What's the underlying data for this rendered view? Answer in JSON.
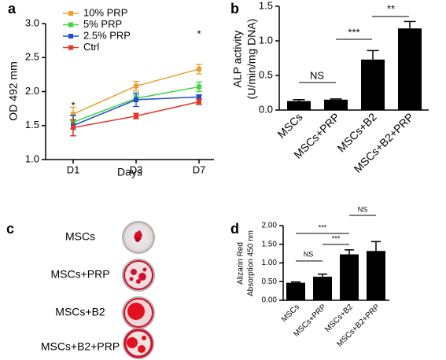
{
  "chart_data": [
    {
      "type": "line",
      "panel_label": "a",
      "y_label": "OD 492 mm",
      "x_label": "Days",
      "categories": [
        "D1",
        "D3",
        "D7"
      ],
      "series": [
        {
          "name": "10% PRP",
          "color": "#E8A02E",
          "values": [
            1.67,
            2.08,
            2.33
          ],
          "errors": [
            0.1,
            0.07,
            0.07
          ]
        },
        {
          "name": "5% PRP",
          "color": "#3BD63B",
          "values": [
            1.55,
            1.9,
            2.07
          ],
          "errors": [
            0.1,
            0.05,
            0.07
          ]
        },
        {
          "name": "2.5% PRP",
          "color": "#1E4FC8",
          "values": [
            1.5,
            1.88,
            1.92
          ],
          "errors": [
            0.15,
            0.1,
            0.03
          ]
        },
        {
          "name": "Ctrl",
          "color": "#E0382A",
          "values": [
            1.47,
            1.64,
            1.85
          ],
          "errors": [
            0.12,
            0.04,
            0.04
          ]
        }
      ],
      "ylim": [
        1.0,
        3.0
      ],
      "yticks": [
        {
          "value": 1.0,
          "label": "1.0"
        },
        1.5,
        {
          "value": 2.0,
          "label": "2.0"
        },
        2.5,
        {
          "value": 3.0,
          "label": "3.0"
        }
      ],
      "annotations": [
        "*",
        "*"
      ],
      "legend": "upper left"
    },
    {
      "type": "bar",
      "panel_label": "b",
      "y_label": [
        "ALP activity",
        "(U/min/mg DNA)"
      ],
      "categories": [
        "MSCs",
        "MSCs+PRP",
        "MSCs+B2",
        "MSCs+B2+PRP"
      ],
      "values": [
        0.13,
        0.15,
        0.73,
        1.18
      ],
      "errors": [
        0.02,
        0.01,
        0.13,
        0.1
      ],
      "color": "#000000",
      "ylim": [
        0,
        1.5
      ],
      "yticks": [
        {
          "value": 0,
          "label": "0.0"
        },
        0.5,
        {
          "value": 1.0,
          "label": "1.0"
        },
        1.5
      ],
      "annotations": [
        "NS",
        "***",
        "**"
      ]
    },
    {
      "type": "bar",
      "panel_label": "d",
      "y_label": [
        "Alizarin Red",
        "Absorption 450 nm"
      ],
      "categories": [
        "MSCs",
        "MSCs+PRP",
        "MSCs+B2",
        "MSCs+B2+PRP"
      ],
      "values": [
        0.47,
        0.63,
        1.23,
        1.32
      ],
      "errors": [
        0.02,
        0.07,
        0.12,
        0.25
      ],
      "color": "#000000",
      "ylim": [
        0,
        2.0
      ],
      "yticks": [
        {
          "value": 0,
          "label": "0.00"
        },
        {
          "value": 0.5,
          "label": "0.50"
        },
        {
          "value": 1.0,
          "label": "1.00"
        },
        {
          "value": 1.5,
          "label": "1.50"
        },
        {
          "value": 2.0,
          "label": "2.00"
        }
      ],
      "annotations": [
        "NS",
        "***",
        "***",
        "NS"
      ]
    }
  ],
  "panel_c": {
    "panel_label": "c",
    "rows": [
      "MSCs",
      "MSCs+PRP",
      "MSCs+B2",
      "MSCs+B2+PRP"
    ]
  }
}
